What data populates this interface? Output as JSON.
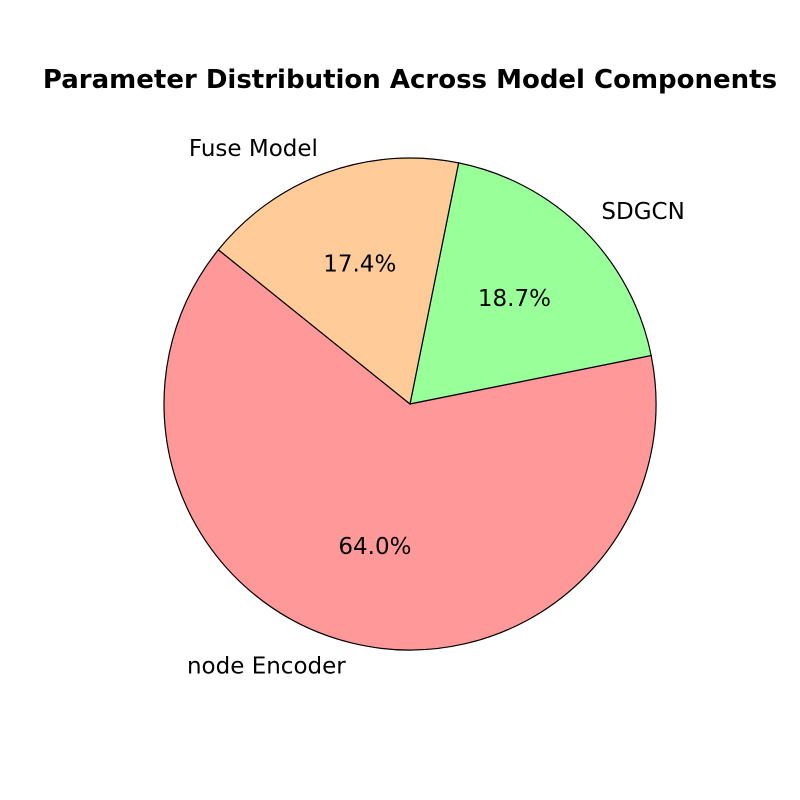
{
  "chart_data": {
    "type": "pie",
    "title": "Parameter Distribution Across Model Components",
    "slices": [
      {
        "label": "SDGCN",
        "value": 18.7,
        "pct_label": "18.7%",
        "color": "#99ff99"
      },
      {
        "label": "node Encoder",
        "value": 64.0,
        "pct_label": "64.0%",
        "color": "#ff9999"
      },
      {
        "label": "Fuse Model",
        "value": 17.4,
        "pct_label": "17.4%",
        "color": "#ffcc99"
      }
    ]
  }
}
